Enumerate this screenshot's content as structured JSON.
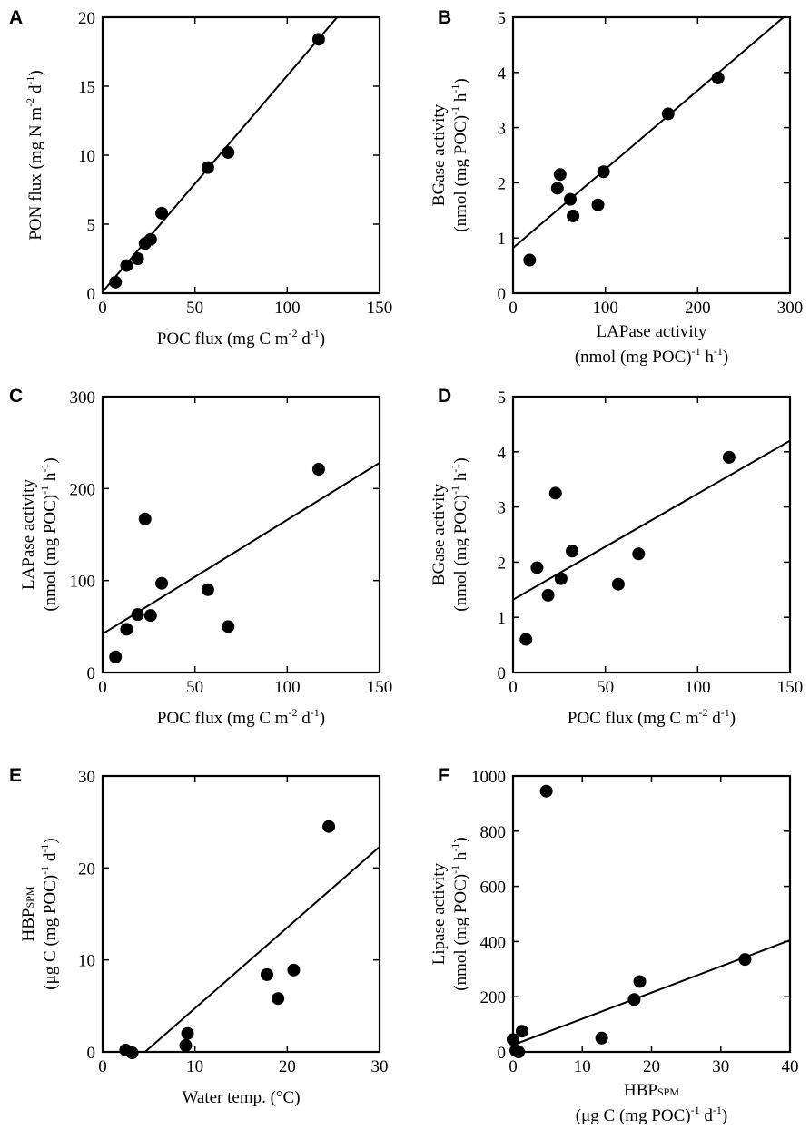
{
  "chart_data": [
    {
      "panel": "A",
      "type": "scatter",
      "xlabel": "POC flux (mg C m-2 d-1)",
      "xlabel_parts": [
        "POC flux (mg C m",
        "-2",
        " d",
        "-1",
        ")"
      ],
      "ylabel_lines": [
        [
          "PON flux (mg N m",
          "-2",
          " d",
          "-1",
          ")"
        ]
      ],
      "xlim": [
        0,
        150
      ],
      "ylim": [
        0,
        20
      ],
      "xticks": [
        0,
        50,
        100,
        150
      ],
      "yticks": [
        0,
        5,
        10,
        15,
        20
      ],
      "points": [
        [
          7,
          0.8
        ],
        [
          13,
          2.0
        ],
        [
          19,
          2.5
        ],
        [
          23,
          3.6
        ],
        [
          26,
          3.9
        ],
        [
          32,
          5.8
        ],
        [
          57,
          9.1
        ],
        [
          68,
          10.2
        ],
        [
          117,
          18.4
        ]
      ],
      "fit": [
        [
          0,
          0.1
        ],
        [
          150,
          23.6
        ]
      ]
    },
    {
      "panel": "B",
      "type": "scatter",
      "xlabel": "LAPase activity (nmol (mg POC)-1 h-1)",
      "xlabel_lines": [
        [
          "LAPase activity"
        ],
        [
          "(nmol (mg POC)",
          "-1",
          " h",
          "-1",
          ")"
        ]
      ],
      "ylabel_lines": [
        [
          "BGase activity"
        ],
        [
          "(nmol (mg POC)",
          "-1",
          " h",
          "-1",
          ")"
        ]
      ],
      "xlim": [
        0,
        300
      ],
      "ylim": [
        0,
        5
      ],
      "xticks": [
        0,
        100,
        200,
        300
      ],
      "yticks": [
        0,
        1,
        2,
        3,
        4,
        5
      ],
      "points": [
        [
          18,
          0.6
        ],
        [
          48,
          1.9
        ],
        [
          51,
          2.15
        ],
        [
          62,
          1.7
        ],
        [
          65,
          1.4
        ],
        [
          92,
          1.6
        ],
        [
          98,
          2.2
        ],
        [
          168,
          3.25
        ],
        [
          222,
          3.9
        ]
      ],
      "fit": [
        [
          0,
          0.82
        ],
        [
          300,
          5.1
        ]
      ]
    },
    {
      "panel": "C",
      "type": "scatter",
      "xlabel": "POC flux (mg C m-2 d-1)",
      "xlabel_parts": [
        "POC flux (mg C m",
        "-2",
        " d",
        "-1",
        ")"
      ],
      "ylabel_lines": [
        [
          "LAPase activity"
        ],
        [
          "(nmol (mg POC)",
          "-1",
          " h",
          "-1",
          ")"
        ]
      ],
      "xlim": [
        0,
        150
      ],
      "ylim": [
        0,
        300
      ],
      "xticks": [
        0,
        50,
        100,
        150
      ],
      "yticks": [
        0,
        100,
        200,
        300
      ],
      "points": [
        [
          7,
          17
        ],
        [
          13,
          47
        ],
        [
          19,
          63
        ],
        [
          23,
          167
        ],
        [
          26,
          62
        ],
        [
          32,
          97
        ],
        [
          57,
          90
        ],
        [
          68,
          50
        ],
        [
          117,
          221
        ]
      ],
      "fit": [
        [
          0,
          42
        ],
        [
          150,
          228
        ]
      ]
    },
    {
      "panel": "D",
      "type": "scatter",
      "xlabel": "POC flux (mg C m-2 d-1)",
      "xlabel_parts": [
        "POC flux (mg C m",
        "-2",
        " d",
        "-1",
        ")"
      ],
      "ylabel_lines": [
        [
          "BGase activity"
        ],
        [
          "(nmol (mg POC)",
          "-1",
          " h",
          "-1",
          ")"
        ]
      ],
      "xlim": [
        0,
        150
      ],
      "ylim": [
        0,
        5
      ],
      "xticks": [
        0,
        50,
        100,
        150
      ],
      "yticks": [
        0,
        1,
        2,
        3,
        4,
        5
      ],
      "points": [
        [
          7,
          0.6
        ],
        [
          13,
          1.9
        ],
        [
          19,
          1.4
        ],
        [
          23,
          3.25
        ],
        [
          26,
          1.7
        ],
        [
          32,
          2.2
        ],
        [
          57,
          1.6
        ],
        [
          68,
          2.15
        ],
        [
          117,
          3.9
        ]
      ],
      "fit": [
        [
          0,
          1.32
        ],
        [
          150,
          4.2
        ]
      ]
    },
    {
      "panel": "E",
      "type": "scatter",
      "xlabel": "Water temp. (°C)",
      "xlabel_parts": [
        "Water temp. (°C)"
      ],
      "ylabel_lines": [
        [
          "HBP",
          "SPM"
        ],
        [
          "(μg C (mg POC)",
          "-1",
          " d",
          "-1",
          ")"
        ]
      ],
      "xlim": [
        0,
        30
      ],
      "ylim": [
        0,
        30
      ],
      "xticks": [
        0,
        10,
        20,
        30
      ],
      "yticks": [
        0,
        10,
        20,
        30
      ],
      "points": [
        [
          2.5,
          0.2
        ],
        [
          3.2,
          -0.1
        ],
        [
          9.0,
          0.7
        ],
        [
          9.2,
          2.0
        ],
        [
          17.8,
          8.4
        ],
        [
          19.0,
          5.8
        ],
        [
          20.7,
          8.9
        ],
        [
          24.5,
          24.5
        ]
      ],
      "fit": [
        [
          4.6,
          0
        ],
        [
          30,
          22.3
        ]
      ]
    },
    {
      "panel": "F",
      "type": "scatter",
      "xlabel": "HBPSPM (μg C (mg POC)-1 d-1)",
      "xlabel_lines": [
        [
          "HBP",
          "SPM"
        ],
        [
          "(μg C (mg POC)",
          "-1",
          " d",
          "-1",
          ")"
        ]
      ],
      "ylabel_lines": [
        [
          "Lipase activity"
        ],
        [
          "(nmol (mg POC)",
          "-1",
          " h",
          "-1",
          ")"
        ]
      ],
      "xlim": [
        0,
        40
      ],
      "ylim": [
        0,
        1000
      ],
      "xticks": [
        0,
        10,
        20,
        30,
        40
      ],
      "yticks": [
        0,
        200,
        400,
        600,
        800,
        1000
      ],
      "points": [
        [
          0,
          45
        ],
        [
          0.4,
          5
        ],
        [
          0.8,
          0
        ],
        [
          1.3,
          75
        ],
        [
          4.8,
          945
        ],
        [
          12.8,
          50
        ],
        [
          17.5,
          190
        ],
        [
          18.3,
          255
        ],
        [
          33.5,
          335
        ]
      ],
      "fit": [
        [
          0,
          25
        ],
        [
          40,
          405
        ]
      ]
    }
  ],
  "colors": {
    "ink": "#000000",
    "background": "#ffffff"
  }
}
